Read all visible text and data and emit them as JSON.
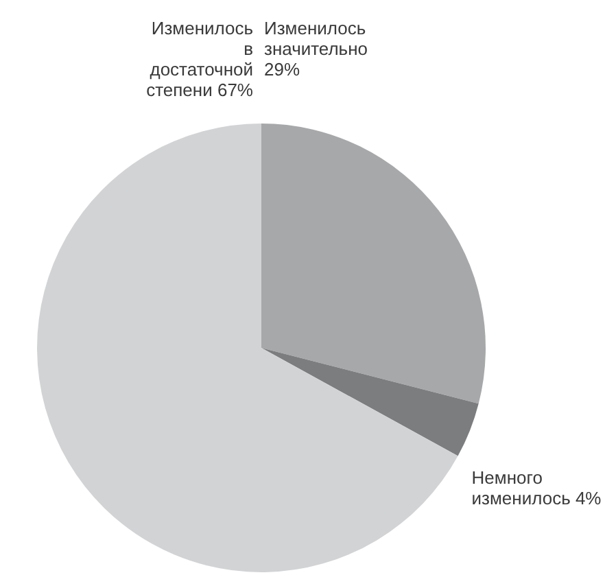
{
  "chart_data": {
    "type": "pie",
    "categories": [
      "Изменилось значительно",
      "Немного изменилось",
      "Изменилось в достаточной степени"
    ],
    "values": [
      29,
      4,
      67
    ],
    "colors": [
      "#a7a8aa",
      "#7c7d7f",
      "#d2d3d5"
    ],
    "value_labels": [
      "29%",
      "4%",
      "67%"
    ],
    "legend": false
  }
}
